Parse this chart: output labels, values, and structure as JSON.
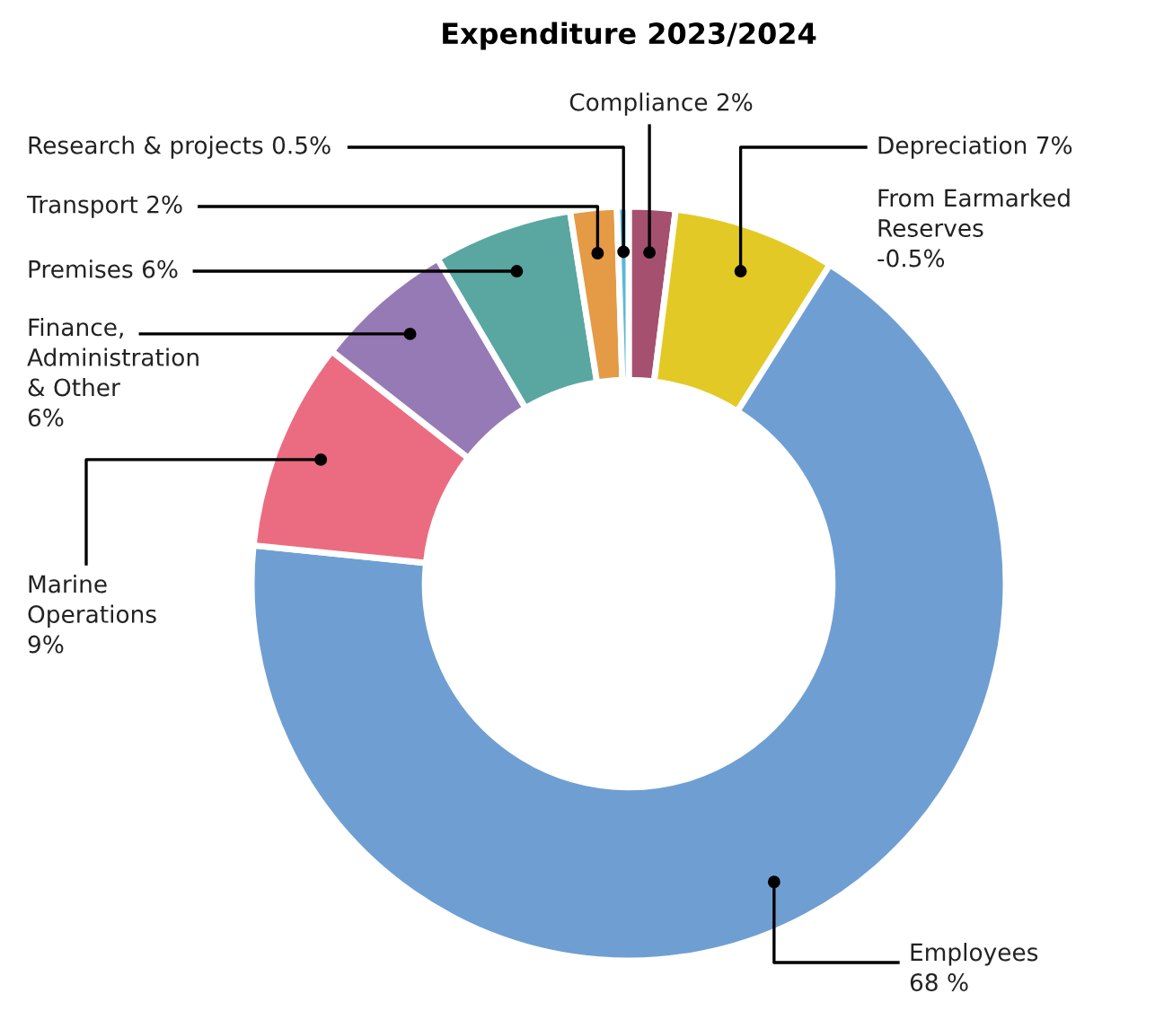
{
  "chart_data": {
    "type": "donut",
    "title": "Expenditure 2023/2024",
    "categories": [
      "Compliance 2%",
      "Depreciation 7%",
      "Employees 68 %",
      "Marine Operations 9%",
      "Finance, Administration & Other 6%",
      "Premises 6%",
      "Transport 2%",
      "Research & projects 0.5%"
    ],
    "values": [
      2,
      7,
      68,
      9,
      6,
      6,
      2,
      0.5
    ],
    "colors": [
      "#a5506f",
      "#e3c925",
      "#6f9fd2",
      "#eb6c80",
      "#967ab5",
      "#5aa7a1",
      "#e59a45",
      "#5bb8d8"
    ],
    "annotations": [
      "From Earmarked Reserves -0.5%"
    ]
  }
}
